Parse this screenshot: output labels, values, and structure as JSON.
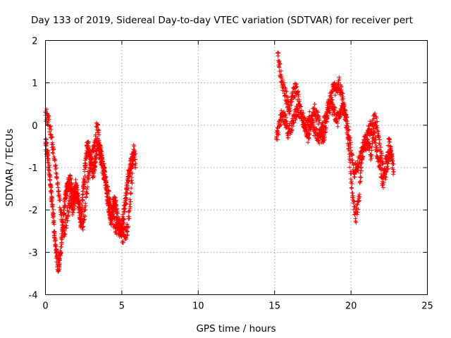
{
  "chart_data": {
    "type": "scatter",
    "title": "Day 133 of 2019, Sidereal Day-to-day VTEC variation (SDTVAR) for receiver pert",
    "xlabel": "GPS time / hours",
    "ylabel": "SDTVAR / TECUs",
    "xlim": [
      0,
      25
    ],
    "ylim": [
      -4,
      2
    ],
    "grid": true,
    "marker": "+",
    "series_color": "#ff0000",
    "x_ticks": [
      0,
      5,
      10,
      15,
      20,
      25
    ],
    "x_tick_labels": [
      "0",
      "5",
      "10",
      "15",
      "20",
      "25"
    ],
    "y_ticks": [
      2,
      1,
      0,
      -1,
      -2,
      -3,
      -4
    ],
    "y_tick_labels": [
      "2",
      "1",
      "0",
      "-1",
      "-2",
      "-3",
      "-4"
    ],
    "series": [
      {
        "name": "SDTVAR",
        "segments": [
          {
            "x": [
              0.0,
              0.1,
              0.2,
              0.3,
              0.4,
              0.5,
              0.6,
              0.7,
              0.8,
              0.9,
              1.0,
              1.1,
              1.2,
              1.3,
              1.4,
              1.5,
              1.6,
              1.7,
              1.8,
              1.9,
              2.0,
              2.1,
              2.2,
              2.3,
              2.4,
              2.5,
              2.6,
              2.7,
              2.8,
              2.9,
              3.0,
              3.1,
              3.2,
              3.3,
              3.4,
              3.5,
              3.6,
              3.7,
              3.8,
              3.9,
              4.0,
              4.1,
              4.2,
              4.3,
              4.4,
              4.5,
              4.6,
              4.7,
              4.8,
              4.9,
              5.0,
              5.1,
              5.2,
              5.3,
              5.4,
              5.5,
              5.6,
              5.7,
              5.8,
              5.9
            ],
            "y": [
              -0.4,
              -0.6,
              -0.9,
              -1.3,
              -1.7,
              -2.1,
              -2.6,
              -3.0,
              -3.3,
              -3.3,
              -3.0,
              -2.5,
              -2.0,
              -1.7,
              -1.5,
              -1.4,
              -1.3,
              -1.5,
              -1.8,
              -1.6,
              -1.4,
              -1.6,
              -2.0,
              -2.3,
              -1.9,
              -1.4,
              -1.0,
              -0.6,
              -0.5,
              -0.7,
              -0.9,
              -1.1,
              -1.0,
              -0.7,
              -0.4,
              -0.5,
              -0.7,
              -0.9,
              -1.1,
              -1.2,
              -1.6,
              -1.9,
              -2.1,
              -2.2,
              -2.0,
              -1.8,
              -1.9,
              -2.2,
              -2.4,
              -2.5,
              -2.4,
              -2.2,
              -1.9,
              -1.6,
              -1.3,
              -1.1,
              -0.9,
              -0.8,
              -0.7,
              -0.9
            ]
          },
          {
            "x": [
              0.0,
              0.2,
              0.4,
              0.6,
              0.8,
              1.0,
              1.2,
              1.4,
              1.6,
              1.8,
              2.0,
              2.2,
              2.4,
              2.6,
              2.8,
              3.0,
              3.2,
              3.4,
              3.6,
              3.8,
              4.0,
              4.2,
              4.4,
              4.6,
              4.8,
              5.0,
              5.2,
              5.4,
              5.6,
              5.8
            ],
            "y": [
              0.3,
              0.1,
              -0.3,
              -0.8,
              -1.4,
              -2.0,
              -2.6,
              -2.2,
              -1.8,
              -2.0,
              -1.6,
              -1.8,
              -2.4,
              -2.0,
              -1.2,
              -0.8,
              -0.4,
              0.0,
              -0.6,
              -1.0,
              -1.4,
              -1.8,
              -2.2,
              -2.5,
              -2.3,
              -2.6,
              -2.6,
              -2.4,
              -1.6,
              -0.5
            ]
          },
          {
            "x": [
              15.2,
              15.4,
              15.6,
              15.8,
              16.0,
              16.2,
              16.4,
              16.6,
              16.8,
              17.0,
              17.2,
              17.4,
              17.6,
              17.8,
              18.0,
              18.2,
              18.4,
              18.6,
              18.8,
              19.0,
              19.2,
              19.4,
              19.6,
              19.8,
              20.0,
              20.2,
              20.4,
              20.6,
              20.8,
              21.0,
              21.2,
              21.4,
              21.6,
              21.8,
              22.0,
              22.2,
              22.4,
              22.6,
              22.8
            ],
            "y": [
              1.7,
              1.2,
              0.9,
              0.6,
              0.4,
              0.7,
              0.9,
              0.6,
              0.2,
              0.0,
              -0.3,
              0.1,
              0.4,
              0.2,
              -0.1,
              -0.4,
              0.2,
              0.6,
              0.8,
              0.9,
              1.0,
              0.7,
              0.3,
              -0.1,
              -0.6,
              -1.1,
              -1.0,
              -0.8,
              -0.5,
              -0.3,
              -0.1,
              0.0,
              0.2,
              -0.3,
              -0.8,
              -1.2,
              -0.9,
              -0.6,
              -1.1
            ]
          },
          {
            "x": [
              15.1,
              15.3,
              15.5,
              15.7,
              15.9,
              16.1,
              16.3,
              16.5,
              16.7,
              16.9,
              17.1,
              17.3,
              17.5,
              17.7,
              17.9,
              18.1,
              18.3,
              18.5,
              18.7,
              18.9,
              19.1,
              19.3,
              19.5,
              19.7,
              19.9,
              20.1,
              20.3,
              20.5,
              20.7,
              20.9,
              21.1,
              21.3,
              21.5,
              21.7,
              21.9,
              22.1,
              22.3,
              22.5,
              22.7
            ],
            "y": [
              -0.3,
              0.0,
              0.3,
              0.1,
              -0.2,
              0.0,
              0.2,
              0.4,
              0.3,
              0.1,
              -0.1,
              0.2,
              0.0,
              -0.2,
              -0.3,
              -0.1,
              0.1,
              0.4,
              0.5,
              0.3,
              0.1,
              0.2,
              0.5,
              0.0,
              -0.8,
              -1.6,
              -2.2,
              -1.8,
              -0.9,
              -0.4,
              -0.5,
              -0.7,
              -0.2,
              -0.6,
              -1.0,
              -1.4,
              -0.8,
              -0.4,
              -0.9
            ]
          }
        ]
      }
    ]
  }
}
